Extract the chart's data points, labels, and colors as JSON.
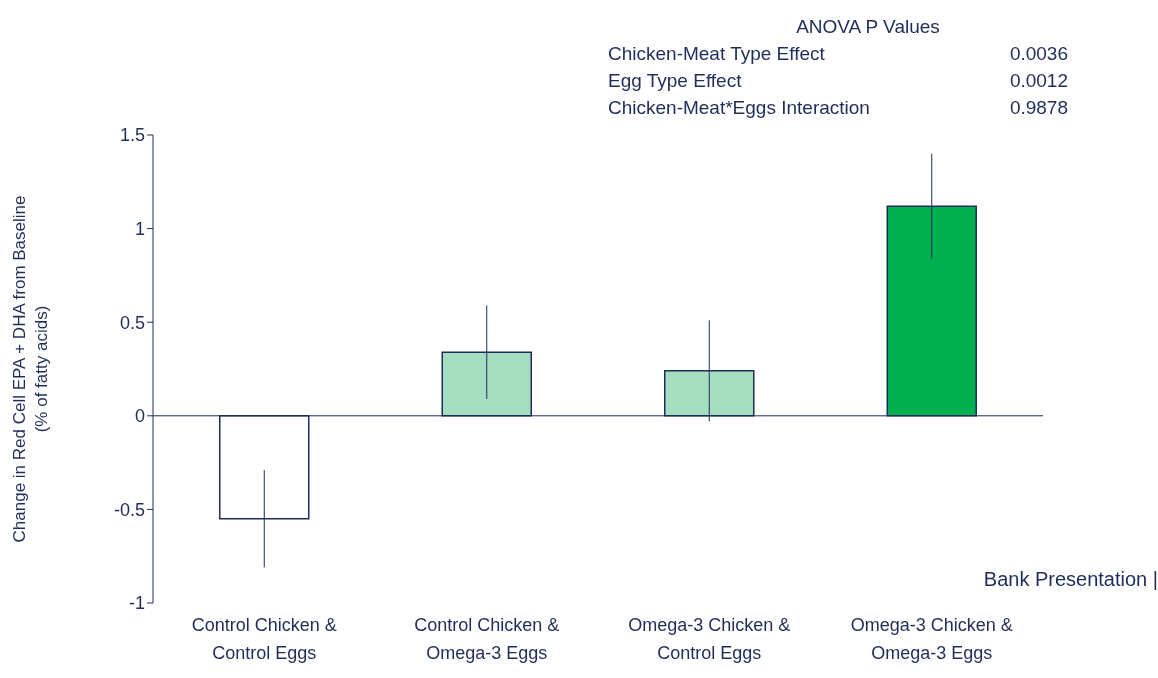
{
  "chart_data": {
    "type": "bar",
    "ylabel": "Change in Red Cell EPA + DHA from Baseline (% of fatty acids)",
    "categories": [
      "Control Chicken & Control Eggs",
      "Control Chicken & Omega-3 Eggs",
      "Omega-3 Chicken & Control Eggs",
      "Omega-3 Chicken & Omega-3 Eggs"
    ],
    "values": [
      -0.55,
      0.34,
      0.24,
      1.12
    ],
    "errors": [
      0.26,
      0.25,
      0.27,
      0.28
    ],
    "colors": [
      "#ffffff",
      "#a6dfbf",
      "#a6dfbf",
      "#00b050"
    ],
    "ylim": [
      -1,
      1.5
    ],
    "yticks": [
      -1,
      -0.5,
      0,
      0.5,
      1,
      1.5
    ],
    "grid": false,
    "legend": false,
    "annotations": [
      "ANOVA P Values",
      "Chicken-Meat Type Effect 0.0036",
      "Egg Type Effect 0.0012",
      "Chicken-Meat*Eggs Interaction 0.9878",
      "Bank Presentation |"
    ]
  }
}
